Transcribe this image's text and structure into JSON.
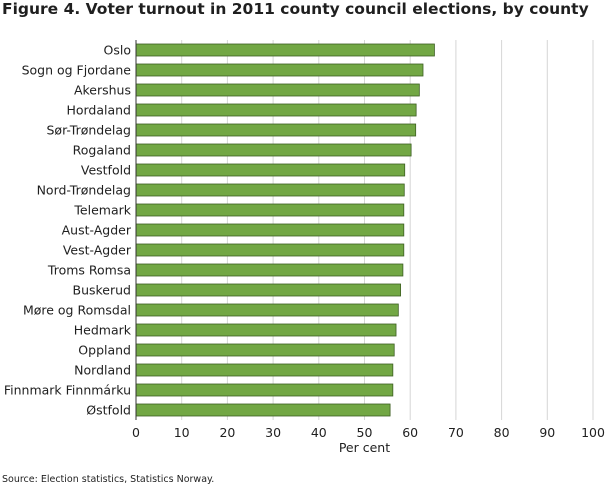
{
  "title": "Figure 4. Voter turnout in 2011 county council elections, by county",
  "source": "Source: Election statistics, Statistics Norway.",
  "colors": {
    "bar_fill": "#72a744",
    "bar_stroke": "#3d5f22",
    "grid": "#d6d6d6",
    "axis": "#333333"
  },
  "chart_data": {
    "type": "bar",
    "orientation": "horizontal",
    "xlabel": "Per cent",
    "xlim": [
      0,
      100
    ],
    "xticks": [
      0,
      10,
      20,
      30,
      40,
      50,
      60,
      70,
      80,
      90,
      100
    ],
    "grid": true,
    "categories": [
      "Oslo",
      "Sogn og Fjordane",
      "Akershus",
      "Hordaland",
      "Sør-Trøndelag",
      "Rogaland",
      "Vestfold",
      "Nord-Trøndelag",
      "Telemark",
      "Aust-Agder",
      "Vest-Agder",
      "Troms Romsa",
      "Buskerud",
      "Møre og Romsdal",
      "Hedmark",
      "Oppland",
      "Nordland",
      "Finnmark Finnmárku",
      "Østfold"
    ],
    "values": [
      65.3,
      62.8,
      62.0,
      61.3,
      61.2,
      60.2,
      58.8,
      58.7,
      58.6,
      58.6,
      58.6,
      58.4,
      57.9,
      57.4,
      56.9,
      56.5,
      56.2,
      56.2,
      55.6
    ]
  }
}
